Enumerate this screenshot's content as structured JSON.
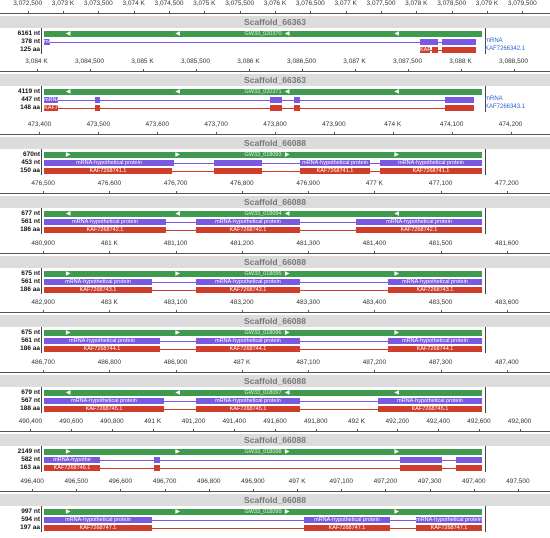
{
  "panels": [
    {
      "scaffold": "Scaffold_66363",
      "ticks": [
        "3,072,500",
        "3,073 K",
        "3,073,500",
        "3,074 K",
        "3,074,500",
        "3,075 K",
        "3,075,500",
        "3,076 K",
        "3,076,500",
        "3,077 K",
        "3,077,500",
        "3,078 K",
        "3,078,500",
        "3,079 K",
        "3,079,500"
      ],
      "nt": "6161 nt",
      "mrna_nt": "378 nt",
      "aa": "125 aa",
      "gene_label": "GW33_020370",
      "mrna_label": "mRNA",
      "cds_label": "KAF7266342.1",
      "side_mrna": "mRNA",
      "side_cds": "KAF7266342.1",
      "direction": "left"
    },
    {
      "scaffold": "Scaffold_66363",
      "ticks": [
        "3,084 K",
        "3,084,500",
        "3,085 K",
        "3,085,500",
        "3,086 K",
        "3,086,500",
        "3,087 K",
        "3,087,500",
        "3,088 K",
        "3,088,500"
      ],
      "nt": "4119 nt",
      "mrna_nt": "447 nt",
      "aa": "148 aa",
      "gene_label": "GW33_020371",
      "mrna_label": "mRNA",
      "cds_label": "KAF7",
      "side_mrna": "mRNA",
      "side_cds": "KAF7266343.1",
      "direction": "left"
    },
    {
      "scaffold": "Scaffold_66088",
      "ticks": [
        "473,400",
        "473,500",
        "473,600",
        "473,700",
        "473,800",
        "473,900",
        "474 K",
        "474,100",
        "474,200"
      ],
      "nt": "670nt",
      "mrna_nt": "453 nt",
      "aa": "150 aa",
      "gene_label": "GW33_018093",
      "mrna_label": "mRNA-hypothetical protein",
      "cds_label": "KAF7268741.1",
      "direction": "right"
    },
    {
      "scaffold": "Scaffold_66088",
      "ticks": [
        "476,500",
        "476,600",
        "476,700",
        "476,800",
        "476,900",
        "477 K",
        "477,100",
        "477,200"
      ],
      "nt": "677 nt",
      "mrna_nt": "561 nt",
      "aa": "186 aa",
      "gene_label": "GW33_018094",
      "mrna_label": "mRNA-hypothetical protein",
      "cds_label": "KAF7268742.1",
      "direction": "left"
    },
    {
      "scaffold": "Scaffold_66088",
      "ticks": [
        "480,900",
        "481 K",
        "481,100",
        "481,200",
        "481,300",
        "481,400",
        "481,500",
        "481,600"
      ],
      "nt": "675 nt",
      "mrna_nt": "561 nt",
      "aa": "186 aa",
      "gene_label": "GW33_018095",
      "mrna_label": "mRNA-hypothetical protein",
      "cds_label": "KAF7268743.1",
      "direction": "right"
    },
    {
      "scaffold": "Scaffold_66088",
      "ticks": [
        "482,900",
        "483 K",
        "483,100",
        "483,200",
        "483,300",
        "483,400",
        "483,500",
        "483,600"
      ],
      "nt": "675 nt",
      "mrna_nt": "561 nt",
      "aa": "186 aa",
      "gene_label": "GW33_018096",
      "mrna_label": "mRNA-hypothetical protein",
      "cds_label": "KAF7268744.1",
      "direction": "right"
    },
    {
      "scaffold": "Scaffold_66088",
      "ticks": [
        "486,700",
        "486,800",
        "486,900",
        "487 K",
        "487,100",
        "487,200",
        "487,300",
        "487,400"
      ],
      "nt": "679 nt",
      "mrna_nt": "567 nt",
      "aa": "188 aa",
      "gene_label": "GW33_018097",
      "mrna_label": "mRNA-hypothetical protein",
      "cds_label": "KAF7268745.1",
      "direction": "left"
    },
    {
      "scaffold": "Scaffold_66088",
      "ticks": [
        "490,400",
        "490,600",
        "490,800",
        "491 K",
        "491,200",
        "491,400",
        "491,600",
        "491,800",
        "492 K",
        "492,200",
        "492,400",
        "492,600",
        "492,800"
      ],
      "nt": "2149 nt",
      "mrna_nt": "582 nt",
      "aa": "163 aa",
      "gene_label": "GW33_018098",
      "mrna_label": "mRNA-hypothe",
      "cds_label": "KAF7268746.1",
      "direction": "right"
    },
    {
      "scaffold": "Scaffold_66088",
      "ticks": [
        "496,400",
        "496,500",
        "496,600",
        "496,700",
        "496,800",
        "496,900",
        "497 K",
        "497,100",
        "497,200",
        "497,300",
        "497,400",
        "497,500"
      ],
      "nt": "997 nt",
      "mrna_nt": "594 nt",
      "aa": "197 aa",
      "gene_label": "GW33_018099",
      "mrna_label": "mRNA-hypothetical protein",
      "cds_label": "KAF7268747.1",
      "direction": "right"
    }
  ],
  "colors": {
    "gene": "#3e9a4c",
    "mrna": "#7a59e2",
    "cds": "#cf3d2b",
    "scaffold_bar": "#dcdcdc",
    "side_label": "#2b5bd6"
  }
}
